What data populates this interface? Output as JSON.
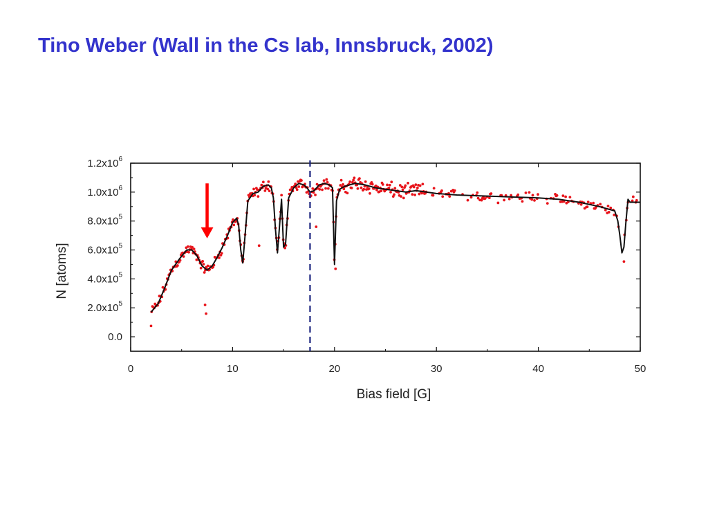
{
  "slide": {
    "title": "Tino Weber (Wall in the Cs lab, Innsbruck, 2002)",
    "title_color": "#3333cc"
  },
  "chart_data": {
    "type": "scatter",
    "title": "",
    "xlabel": "Bias field [G]",
    "ylabel": "N [atoms]",
    "xlim": [
      0,
      50
    ],
    "ylim": [
      -100000,
      1200000
    ],
    "grid": false,
    "legend": "none",
    "x_ticks": [
      {
        "value": 0,
        "label": "0"
      },
      {
        "value": 10,
        "label": "10"
      },
      {
        "value": 20,
        "label": "20"
      },
      {
        "value": 30,
        "label": "30"
      },
      {
        "value": 40,
        "label": "40"
      },
      {
        "value": 50,
        "label": "50"
      }
    ],
    "y_ticks": [
      {
        "value": 0,
        "label": "0.0",
        "exp": ""
      },
      {
        "value": 200000,
        "label": "2.0x10",
        "exp": "5"
      },
      {
        "value": 400000,
        "label": "4.0x10",
        "exp": "5"
      },
      {
        "value": 600000,
        "label": "6.0x10",
        "exp": "5"
      },
      {
        "value": 800000,
        "label": "8.0x10",
        "exp": "5"
      },
      {
        "value": 1000000,
        "label": "1.0x10",
        "exp": "6"
      },
      {
        "value": 1200000,
        "label": "1.2x10",
        "exp": "6"
      }
    ],
    "colors": {
      "points": "#e8141b",
      "fit_line": "#111111",
      "marker_line": "#1a237e",
      "arrow": "#ff0000"
    },
    "fit_curve": {
      "x": [
        2.0,
        2.7,
        3.3,
        4.0,
        4.8,
        5.5,
        6.0,
        6.5,
        7.0,
        7.5,
        8.0,
        8.5,
        9.0,
        9.5,
        10.0,
        10.4,
        10.6,
        10.8,
        11.0,
        11.2,
        11.5,
        12.0,
        12.5,
        13.0,
        13.5,
        13.8,
        14.0,
        14.2,
        14.4,
        14.6,
        14.8,
        15.0,
        15.2,
        15.5,
        16.0,
        16.5,
        17.0,
        17.3,
        17.6,
        18.0,
        18.5,
        19.0,
        19.5,
        19.8,
        20.0,
        20.2,
        20.5,
        21.0,
        22.0,
        23.0,
        24.0,
        25.0,
        26.0,
        27.0,
        28.0,
        29.0,
        30.0,
        32.0,
        34.0,
        36.0,
        38.0,
        40.0,
        42.0,
        44.0,
        46.0,
        47.0,
        47.5,
        47.8,
        48.0,
        48.2,
        48.4,
        48.6,
        48.8,
        49.0,
        49.5,
        50.0
      ],
      "y": [
        170000,
        230000,
        330000,
        460000,
        540000,
        600000,
        600000,
        560000,
        490000,
        460000,
        490000,
        550000,
        620000,
        700000,
        790000,
        820000,
        770000,
        600000,
        510000,
        680000,
        940000,
        990000,
        1000000,
        1040000,
        1050000,
        1030000,
        960000,
        750000,
        580000,
        760000,
        950000,
        620000,
        640000,
        960000,
        1030000,
        1060000,
        1050000,
        1030000,
        1000000,
        1010000,
        1050000,
        1060000,
        1050000,
        1030000,
        500000,
        940000,
        1020000,
        1040000,
        1060000,
        1050000,
        1030000,
        1020000,
        1010000,
        1000000,
        1010000,
        1000000,
        990000,
        980000,
        975000,
        970000,
        965000,
        960000,
        950000,
        930000,
        900000,
        880000,
        870000,
        800000,
        700000,
        580000,
        620000,
        800000,
        950000,
        930000,
        930000,
        930000
      ]
    },
    "marker_line_x": 17.6,
    "arrow": {
      "x": 7.5,
      "y_from": 1060000,
      "y_to": 680000
    },
    "scatter_noise": 45000
  }
}
